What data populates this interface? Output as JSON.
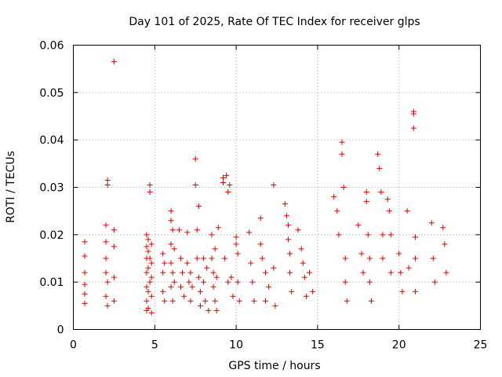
{
  "chart_data": {
    "type": "scatter",
    "title": "Day 101 of 2025, Rate Of TEC Index for receiver glps",
    "xlabel": "GPS time / hours",
    "ylabel": "ROTI / TECUs",
    "xlim": [
      0,
      25
    ],
    "ylim": [
      0,
      0.06
    ],
    "x_ticks": [
      0,
      5,
      10,
      15,
      20,
      25
    ],
    "x_tick_labels": [
      "0",
      "5",
      "10",
      "15",
      "20",
      "25"
    ],
    "y_ticks": [
      0,
      0.01,
      0.02,
      0.03,
      0.04,
      0.05,
      0.06
    ],
    "y_tick_labels": [
      "0",
      "0.01",
      "0.02",
      "0.03",
      "0.04",
      "0.05",
      "0.06"
    ],
    "grid": true,
    "marker": "+",
    "marker_color": "#e00000",
    "series": [
      {
        "name": "ROTI",
        "x": [
          0.7,
          0.7,
          0.7,
          0.7,
          0.7,
          0.7,
          2.0,
          2.0,
          2.0,
          2.0,
          2.0,
          2.1,
          2.1,
          2.1,
          2.1,
          2.5,
          2.5,
          2.5,
          2.5,
          2.5,
          4.5,
          4.5,
          4.5,
          4.5,
          4.5,
          4.5,
          4.5,
          4.6,
          4.6,
          4.6,
          4.6,
          4.6,
          4.7,
          4.7,
          4.7,
          4.7,
          4.8,
          4.8,
          4.8,
          4.8,
          4.8,
          5.5,
          5.5,
          5.5,
          5.6,
          5.6,
          6.0,
          6.0,
          6.0,
          6.0,
          6.0,
          6.1,
          6.1,
          6.1,
          6.2,
          6.2,
          6.5,
          6.6,
          6.6,
          6.7,
          6.8,
          7.0,
          7.0,
          7.1,
          7.2,
          7.2,
          7.3,
          7.5,
          7.5,
          7.6,
          7.6,
          7.7,
          7.7,
          7.8,
          7.8,
          8.0,
          8.0,
          8.1,
          8.2,
          8.3,
          8.5,
          8.5,
          8.6,
          8.6,
          8.7,
          8.7,
          8.8,
          8.8,
          8.9,
          9.2,
          9.2,
          9.3,
          9.4,
          9.5,
          9.5,
          9.6,
          9.7,
          9.8,
          10.0,
          10.0,
          10.1,
          10.1,
          10.2,
          10.8,
          10.9,
          11.0,
          11.1,
          11.5,
          11.5,
          11.6,
          11.8,
          11.8,
          12.0,
          12.3,
          12.3,
          12.4,
          13.0,
          13.1,
          13.2,
          13.2,
          13.3,
          13.3,
          13.4,
          13.8,
          14.0,
          14.1,
          14.2,
          14.3,
          14.5,
          14.7,
          16.0,
          16.2,
          16.3,
          16.5,
          16.5,
          16.6,
          16.7,
          16.7,
          16.8,
          17.5,
          17.7,
          17.8,
          18.0,
          18.0,
          18.1,
          18.2,
          18.2,
          18.3,
          18.7,
          18.8,
          18.9,
          19.0,
          19.0,
          19.3,
          19.4,
          19.5,
          19.5,
          20.0,
          20.1,
          20.2,
          20.5,
          20.6,
          20.9,
          20.9,
          20.9,
          21.0,
          21.0,
          21.0,
          22.0,
          22.1,
          22.2,
          22.7,
          22.8,
          22.9
        ],
        "y": [
          0.0185,
          0.0155,
          0.012,
          0.0095,
          0.0075,
          0.0055,
          0.022,
          0.0185,
          0.015,
          0.012,
          0.007,
          0.0315,
          0.0305,
          0.01,
          0.005,
          0.0565,
          0.021,
          0.0175,
          0.011,
          0.006,
          0.02,
          0.0175,
          0.015,
          0.012,
          0.009,
          0.006,
          0.004,
          0.019,
          0.0165,
          0.013,
          0.008,
          0.0045,
          0.0305,
          0.029,
          0.015,
          0.01,
          0.018,
          0.014,
          0.011,
          0.007,
          0.0035,
          0.016,
          0.012,
          0.008,
          0.014,
          0.006,
          0.025,
          0.023,
          0.018,
          0.014,
          0.009,
          0.021,
          0.012,
          0.006,
          0.017,
          0.01,
          0.021,
          0.015,
          0.009,
          0.012,
          0.007,
          0.0205,
          0.014,
          0.01,
          0.012,
          0.006,
          0.009,
          0.036,
          0.0305,
          0.021,
          0.015,
          0.026,
          0.011,
          0.008,
          0.005,
          0.015,
          0.01,
          0.006,
          0.013,
          0.004,
          0.02,
          0.015,
          0.012,
          0.009,
          0.017,
          0.006,
          0.011,
          0.004,
          0.0215,
          0.032,
          0.031,
          0.015,
          0.0325,
          0.029,
          0.01,
          0.0305,
          0.011,
          0.007,
          0.0195,
          0.018,
          0.016,
          0.01,
          0.006,
          0.0205,
          0.014,
          0.01,
          0.006,
          0.0235,
          0.018,
          0.015,
          0.012,
          0.006,
          0.009,
          0.0305,
          0.013,
          0.005,
          0.0265,
          0.024,
          0.022,
          0.019,
          0.016,
          0.012,
          0.008,
          0.021,
          0.017,
          0.014,
          0.011,
          0.007,
          0.012,
          0.008,
          0.028,
          0.025,
          0.02,
          0.0395,
          0.037,
          0.03,
          0.015,
          0.01,
          0.006,
          0.022,
          0.016,
          0.012,
          0.029,
          0.027,
          0.02,
          0.015,
          0.01,
          0.006,
          0.037,
          0.034,
          0.029,
          0.02,
          0.015,
          0.0275,
          0.025,
          0.02,
          0.012,
          0.016,
          0.012,
          0.008,
          0.025,
          0.013,
          0.046,
          0.0455,
          0.0425,
          0.0195,
          0.015,
          0.008,
          0.0225,
          0.015,
          0.01,
          0.0215,
          0.018,
          0.012
        ]
      }
    ]
  }
}
